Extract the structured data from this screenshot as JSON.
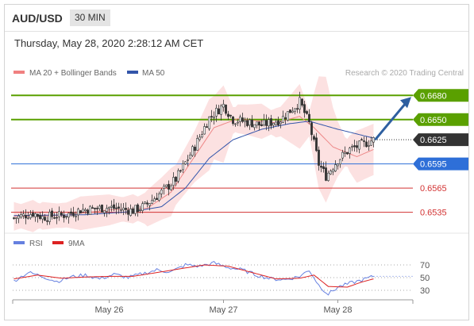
{
  "header": {
    "symbol": "AUD/USD",
    "timeframe": "30 MIN"
  },
  "timestamp": "Thursday, May 28, 2020 2:28:12 AM CET",
  "legend": {
    "ma20": {
      "label": "MA 20 + Bollinger Bands",
      "color": "#f08080"
    },
    "ma50": {
      "label": "MA 50",
      "color": "#3355aa"
    },
    "copyright": "Research © 2020 Trading Central"
  },
  "chart_data": [
    {
      "type": "candlestick",
      "title": "AUD/USD 30 MIN",
      "ylim": [
        0.6515,
        0.6695
      ],
      "x_ticks": [
        {
          "label": "May 26",
          "index": 40
        },
        {
          "label": "May 27",
          "index": 88
        },
        {
          "label": "May 28",
          "index": 136
        }
      ],
      "n_bars": 152,
      "close_path": [
        [
          0,
          0.6528
        ],
        [
          8,
          0.6534
        ],
        [
          12,
          0.6529
        ],
        [
          22,
          0.6532
        ],
        [
          28,
          0.6538
        ],
        [
          40,
          0.6541
        ],
        [
          50,
          0.6537
        ],
        [
          55,
          0.6543
        ],
        [
          62,
          0.656
        ],
        [
          68,
          0.6576
        ],
        [
          76,
          0.6617
        ],
        [
          82,
          0.6652
        ],
        [
          88,
          0.6668
        ],
        [
          92,
          0.665
        ],
        [
          98,
          0.6647
        ],
        [
          104,
          0.6643
        ],
        [
          112,
          0.665
        ],
        [
          120,
          0.6672
        ],
        [
          124,
          0.6645
        ],
        [
          128,
          0.6595
        ],
        [
          131,
          0.658
        ],
        [
          136,
          0.66
        ],
        [
          141,
          0.6613
        ],
        [
          147,
          0.662
        ],
        [
          151,
          0.6625
        ]
      ],
      "ma20_path": [
        [
          0,
          0.653
        ],
        [
          20,
          0.6531
        ],
        [
          40,
          0.6538
        ],
        [
          56,
          0.654
        ],
        [
          66,
          0.656
        ],
        [
          74,
          0.6596
        ],
        [
          84,
          0.664
        ],
        [
          94,
          0.6651
        ],
        [
          110,
          0.6646
        ],
        [
          120,
          0.6654
        ],
        [
          126,
          0.664
        ],
        [
          134,
          0.6616
        ],
        [
          144,
          0.6604
        ],
        [
          151,
          0.6613
        ]
      ],
      "bb_width": 0.0025,
      "ma50_path": [
        [
          0,
          0.6531
        ],
        [
          30,
          0.6532
        ],
        [
          50,
          0.6536
        ],
        [
          62,
          0.6542
        ],
        [
          72,
          0.6565
        ],
        [
          82,
          0.6602
        ],
        [
          92,
          0.6625
        ],
        [
          104,
          0.6638
        ],
        [
          116,
          0.6645
        ],
        [
          124,
          0.6648
        ],
        [
          136,
          0.6638
        ],
        [
          151,
          0.6627
        ]
      ],
      "levels": [
        {
          "value": 0.668,
          "label": "0.6680",
          "color": "#5aa000",
          "style": "resistance"
        },
        {
          "value": 0.665,
          "label": "0.6650",
          "color": "#5aa000",
          "style": "resistance"
        },
        {
          "value": 0.6625,
          "label": "0.6625",
          "color": "#333333",
          "style": "last"
        },
        {
          "value": 0.6595,
          "label": "0.6595",
          "color": "#2e6fd8",
          "style": "pivot"
        },
        {
          "value": 0.6565,
          "label": "0.6565",
          "color": "#d33333",
          "style": "support"
        },
        {
          "value": 0.6535,
          "label": "0.6535",
          "color": "#d33333",
          "style": "support"
        }
      ],
      "forecast_arrow": {
        "from": [
          151,
          0.6625
        ],
        "to": 0.668,
        "color": "#2e5fa0"
      }
    },
    {
      "type": "line",
      "title": "RSI",
      "ylim": [
        15,
        85
      ],
      "yticks": [
        70,
        50,
        30
      ],
      "series": [
        {
          "name": "RSI",
          "color": "#6680e0",
          "path": [
            [
              0,
              45
            ],
            [
              6,
              58
            ],
            [
              12,
              52
            ],
            [
              18,
              44
            ],
            [
              24,
              51
            ],
            [
              30,
              54
            ],
            [
              36,
              48
            ],
            [
              42,
              55
            ],
            [
              48,
              50
            ],
            [
              54,
              56
            ],
            [
              60,
              62
            ],
            [
              66,
              59
            ],
            [
              72,
              70
            ],
            [
              78,
              68
            ],
            [
              84,
              73
            ],
            [
              90,
              66
            ],
            [
              96,
              62
            ],
            [
              102,
              54
            ],
            [
              108,
              48
            ],
            [
              114,
              47
            ],
            [
              120,
              52
            ],
            [
              124,
              62
            ],
            [
              128,
              38
            ],
            [
              132,
              24
            ],
            [
              136,
              35
            ],
            [
              142,
              42
            ],
            [
              146,
              46
            ],
            [
              151,
              52
            ]
          ]
        },
        {
          "name": "9MA",
          "color": "#dd2222",
          "path": [
            [
              0,
              48
            ],
            [
              10,
              54
            ],
            [
              20,
              49
            ],
            [
              30,
              51
            ],
            [
              40,
              52
            ],
            [
              50,
              52
            ],
            [
              60,
              58
            ],
            [
              70,
              64
            ],
            [
              80,
              70
            ],
            [
              90,
              68
            ],
            [
              100,
              58
            ],
            [
              110,
              48
            ],
            [
              120,
              49
            ],
            [
              126,
              54
            ],
            [
              132,
              36
            ],
            [
              140,
              35
            ],
            [
              146,
              43
            ],
            [
              151,
              48
            ]
          ]
        }
      ]
    }
  ]
}
